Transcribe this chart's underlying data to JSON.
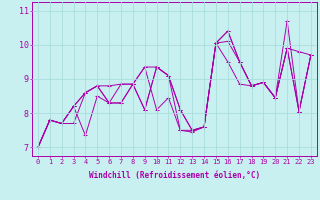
{
  "xlabel": "Windchill (Refroidissement éolien,°C)",
  "background_color": "#c8f0f0",
  "line_color": "#aa00aa",
  "grid_color": "#aadddd",
  "xlim": [
    -0.5,
    23.5
  ],
  "ylim": [
    6.75,
    11.25
  ],
  "yticks": [
    7,
    8,
    9,
    10,
    11
  ],
  "xticks": [
    0,
    1,
    2,
    3,
    4,
    5,
    6,
    7,
    8,
    9,
    10,
    11,
    12,
    13,
    14,
    15,
    16,
    17,
    18,
    19,
    20,
    21,
    22,
    23
  ],
  "lines": [
    [
      7.0,
      7.8,
      7.7,
      8.2,
      8.6,
      8.8,
      8.8,
      8.85,
      8.85,
      9.35,
      8.1,
      8.45,
      7.5,
      7.45,
      7.6,
      10.05,
      9.5,
      8.85,
      8.8,
      8.9,
      8.45,
      9.9,
      9.8,
      9.7
    ],
    [
      7.0,
      7.8,
      7.7,
      8.2,
      7.35,
      8.5,
      8.3,
      8.3,
      8.85,
      8.1,
      9.35,
      9.1,
      7.5,
      7.5,
      7.6,
      10.05,
      10.4,
      9.5,
      8.8,
      8.9,
      8.45,
      9.9,
      8.05,
      9.7
    ],
    [
      7.0,
      7.8,
      7.7,
      7.7,
      8.6,
      8.8,
      8.3,
      8.3,
      8.85,
      9.35,
      9.35,
      9.1,
      8.1,
      7.5,
      7.6,
      10.05,
      10.4,
      9.5,
      8.8,
      8.9,
      8.45,
      9.9,
      8.05,
      9.7
    ],
    [
      7.0,
      7.8,
      7.7,
      8.2,
      8.6,
      8.8,
      8.3,
      8.85,
      8.85,
      8.1,
      9.35,
      9.1,
      8.1,
      7.5,
      7.6,
      10.05,
      10.1,
      9.5,
      8.8,
      8.9,
      8.45,
      10.7,
      8.05,
      9.7
    ]
  ],
  "tick_fontsize": 5,
  "xlabel_fontsize": 5.5,
  "marker_size": 2.5,
  "linewidth": 0.7
}
